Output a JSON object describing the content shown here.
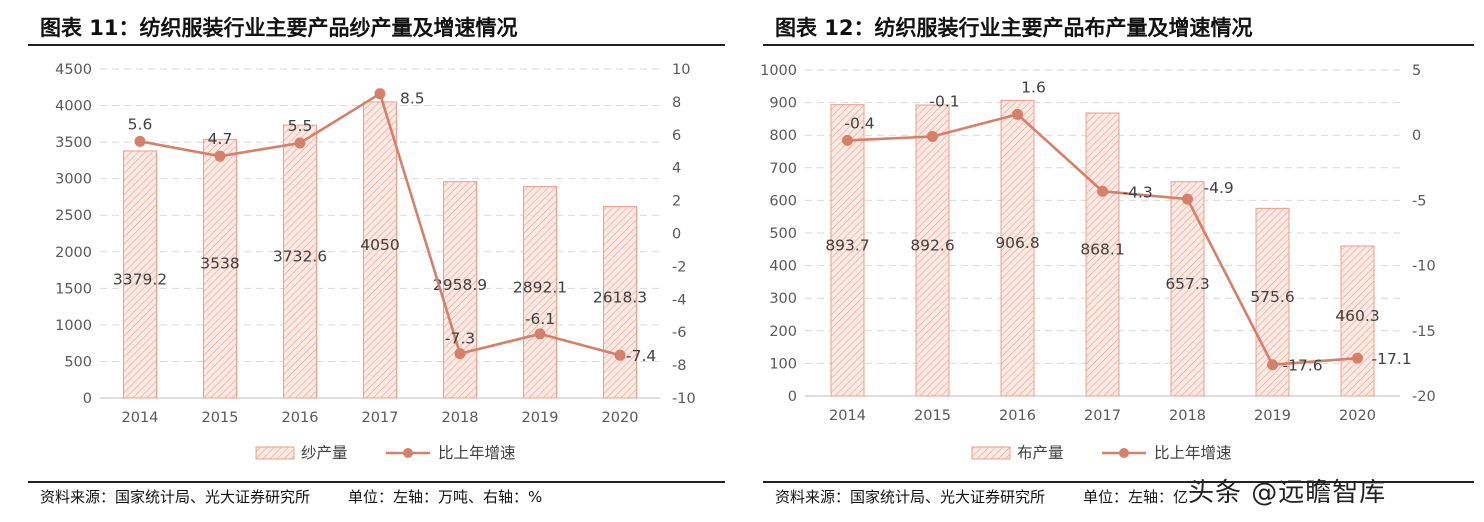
{
  "watermark": "头条 @远瞻智库",
  "colors": {
    "bar": "#e8a08c",
    "bar_fill": "#fbe9e3",
    "line": "#d4806a",
    "grid": "#d9d9d9",
    "text": "#404040"
  },
  "charts": [
    {
      "title": "图表  11：纺织服装行业主要产品纱产量及增速情况",
      "source_label": "资料来源：国家统计局、光大证券研究所",
      "unit_label": "单位：左轴：万吨、右轴：%",
      "chart_data": {
        "type": "bar+line",
        "categories": [
          "2014",
          "2015",
          "2016",
          "2017",
          "2018",
          "2019",
          "2020"
        ],
        "series": [
          {
            "name": "纱产量",
            "type": "bar",
            "axis": "left",
            "values": [
              3379.2,
              3538,
              3732.6,
              4050,
              2958.9,
              2892.1,
              2618.3
            ]
          },
          {
            "name": "比上年增速",
            "type": "line",
            "axis": "right",
            "values": [
              5.6,
              4.7,
              5.5,
              8.5,
              -7.3,
              -6.1,
              -7.4
            ]
          }
        ],
        "left_axis": {
          "min": 0,
          "max": 4500,
          "step": 500
        },
        "right_axis": {
          "min": -10,
          "max": 10,
          "step": 2
        },
        "grid": true,
        "legend_position": "bottom"
      }
    },
    {
      "title": "图表  12：纺织服装行业主要产品布产量及增速情况",
      "source_label": "资料来源：国家统计局、光大证券研究所",
      "unit_label": "单位：左轴：亿",
      "chart_data": {
        "type": "bar+line",
        "categories": [
          "2014",
          "2015",
          "2016",
          "2017",
          "2018",
          "2019",
          "2020"
        ],
        "series": [
          {
            "name": "布产量",
            "type": "bar",
            "axis": "left",
            "values": [
              893.7,
              892.6,
              906.8,
              868.1,
              657.3,
              575.6,
              460.3
            ]
          },
          {
            "name": "比上年增速",
            "type": "line",
            "axis": "right",
            "values": [
              -0.4,
              -0.1,
              1.6,
              -4.3,
              -4.9,
              -17.6,
              -17.1
            ]
          }
        ],
        "left_axis": {
          "min": 0,
          "max": 1000,
          "step": 100
        },
        "right_axis": {
          "min": -20,
          "max": 5,
          "step": 5
        },
        "grid": true,
        "legend_position": "bottom"
      }
    }
  ]
}
